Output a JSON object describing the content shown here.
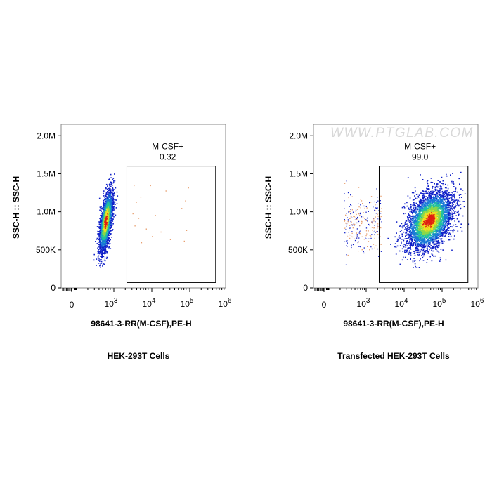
{
  "colors": {
    "density_low": "#1020c8",
    "density_mid": "#20c0a0",
    "density_high": "#f0e020",
    "density_peak": "#e02010",
    "outlier": "#e8a070",
    "gate": "#000000",
    "watermark": "#d8d8d8"
  },
  "chart_data": [
    {
      "type": "scatter",
      "subtitle": "HEK-293T Cells",
      "xlabel": "98641-3-RR(M-CSF),PE-H",
      "ylabel": "SSC-H :: SSC-H",
      "x_scale": "biexponential",
      "x_ticks": [
        {
          "value": 0,
          "label": "0"
        },
        {
          "value": 1000,
          "label": "10",
          "exp": "3"
        },
        {
          "value": 10000,
          "label": "10",
          "exp": "4"
        },
        {
          "value": 100000,
          "label": "10",
          "exp": "5"
        },
        {
          "value": 1000000,
          "label": "10",
          "exp": "6"
        }
      ],
      "y_ticks": [
        {
          "value": 0,
          "label": "0"
        },
        {
          "value": 500000,
          "label": "500K"
        },
        {
          "value": 1000000,
          "label": "1.0M"
        },
        {
          "value": 1500000,
          "label": "1.5M"
        },
        {
          "value": 2000000,
          "label": "2.0M"
        }
      ],
      "ylim": [
        0,
        2150000
      ],
      "gate": {
        "name": "M-CSF+",
        "value": "0.32",
        "x_range": [
          2200,
          480000
        ],
        "y_range": [
          70000,
          1600000
        ]
      },
      "population": {
        "x_median": 600,
        "y_median": 880000,
        "events": 2600,
        "seed": 11
      },
      "sparse_points": [
        [
          3300,
          1350000
        ],
        [
          5000,
          1200000
        ],
        [
          9000,
          1350000
        ],
        [
          23000,
          1280000
        ],
        [
          90000,
          1320000
        ],
        [
          3800,
          1130000
        ],
        [
          75000,
          1150000
        ],
        [
          3100,
          980000
        ],
        [
          4400,
          920000
        ],
        [
          12000,
          960000
        ],
        [
          28000,
          900000
        ],
        [
          60000,
          1050000
        ],
        [
          3500,
          820000
        ],
        [
          7000,
          780000
        ],
        [
          17000,
          740000
        ],
        [
          80000,
          760000
        ],
        [
          10000,
          680000
        ],
        [
          30000,
          640000
        ],
        [
          70000,
          620000
        ],
        [
          5200,
          600000
        ]
      ],
      "watermark": ""
    },
    {
      "type": "scatter",
      "subtitle": "Transfected HEK-293T Cells",
      "xlabel": "98641-3-RR(M-CSF),PE-H",
      "ylabel": "SSC-H :: SSC-H",
      "x_scale": "biexponential",
      "x_ticks": [
        {
          "value": 0,
          "label": "0"
        },
        {
          "value": 1000,
          "label": "10",
          "exp": "3"
        },
        {
          "value": 10000,
          "label": "10",
          "exp": "4"
        },
        {
          "value": 100000,
          "label": "10",
          "exp": "5"
        },
        {
          "value": 1000000,
          "label": "10",
          "exp": "6"
        }
      ],
      "y_ticks": [
        {
          "value": 0,
          "label": "0"
        },
        {
          "value": 500000,
          "label": "500K"
        },
        {
          "value": 1000000,
          "label": "1.0M"
        },
        {
          "value": 1500000,
          "label": "1.5M"
        },
        {
          "value": 2000000,
          "label": "2.0M"
        }
      ],
      "ylim": [
        0,
        2150000
      ],
      "gate": {
        "name": "M-CSF+",
        "value": "99.0",
        "x_range": [
          2200,
          480000
        ],
        "y_range": [
          70000,
          1600000
        ]
      },
      "population": {
        "x_median": 45000,
        "y_median": 890000,
        "events": 4200,
        "seed": 23
      },
      "sparse_points": [],
      "watermark": "WWW.PTGLAB.COM"
    }
  ]
}
